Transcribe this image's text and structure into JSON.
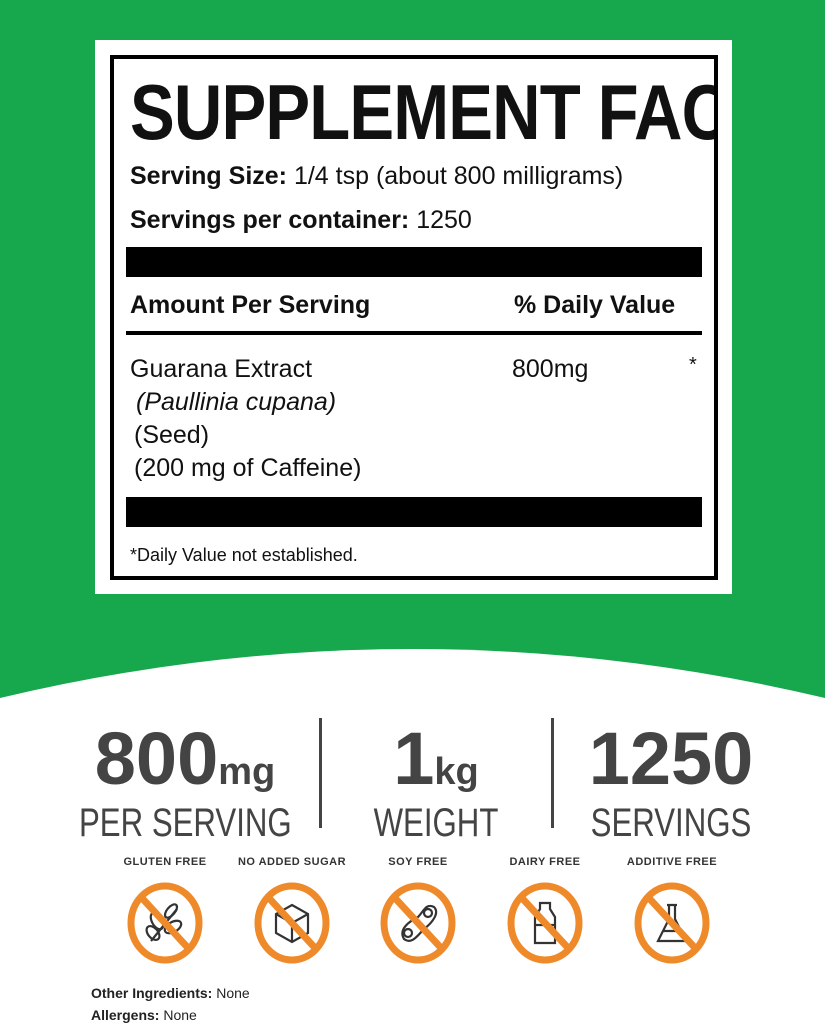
{
  "colors": {
    "background_green": "#17a84e",
    "badge_orange": "#ef8a2b",
    "stat_gray": "#444444"
  },
  "facts": {
    "title": "SUPPLEMENT FACTS",
    "serving_size_label": "Serving Size:",
    "serving_size_value": " 1/4 tsp (about 800 milligrams)",
    "servings_label": "Servings per container:",
    "servings_value": " 1250",
    "amount_header": "Amount Per Serving",
    "dv_header": "% Daily Value",
    "ingredient": {
      "name": "Guarana Extract",
      "latin": "(Paullinia cupana)",
      "part": "(Seed)",
      "caffeine": "(200 mg of Caffeine)",
      "amount": "800mg",
      "dv": "*"
    },
    "footnote": "*Daily Value not established."
  },
  "stats": [
    {
      "value": "800",
      "unit": "mg",
      "label": "PER SERVING"
    },
    {
      "value": "1",
      "unit": "kg",
      "label": "WEIGHT"
    },
    {
      "value": "1250",
      "unit": "",
      "label": "SERVINGS"
    }
  ],
  "badges": [
    {
      "label": "GLUTEN FREE",
      "icon": "wheat-icon"
    },
    {
      "label": "NO ADDED SUGAR",
      "icon": "sugar-cube-icon"
    },
    {
      "label": "SOY FREE",
      "icon": "soybean-icon"
    },
    {
      "label": "DAIRY FREE",
      "icon": "milk-bottle-icon"
    },
    {
      "label": "ADDITIVE FREE",
      "icon": "flask-icon"
    }
  ],
  "footer": {
    "other_label": "Other Ingredients:",
    "other_value": " None",
    "allergens_label": "Allergens:",
    "allergens_value": " None"
  }
}
